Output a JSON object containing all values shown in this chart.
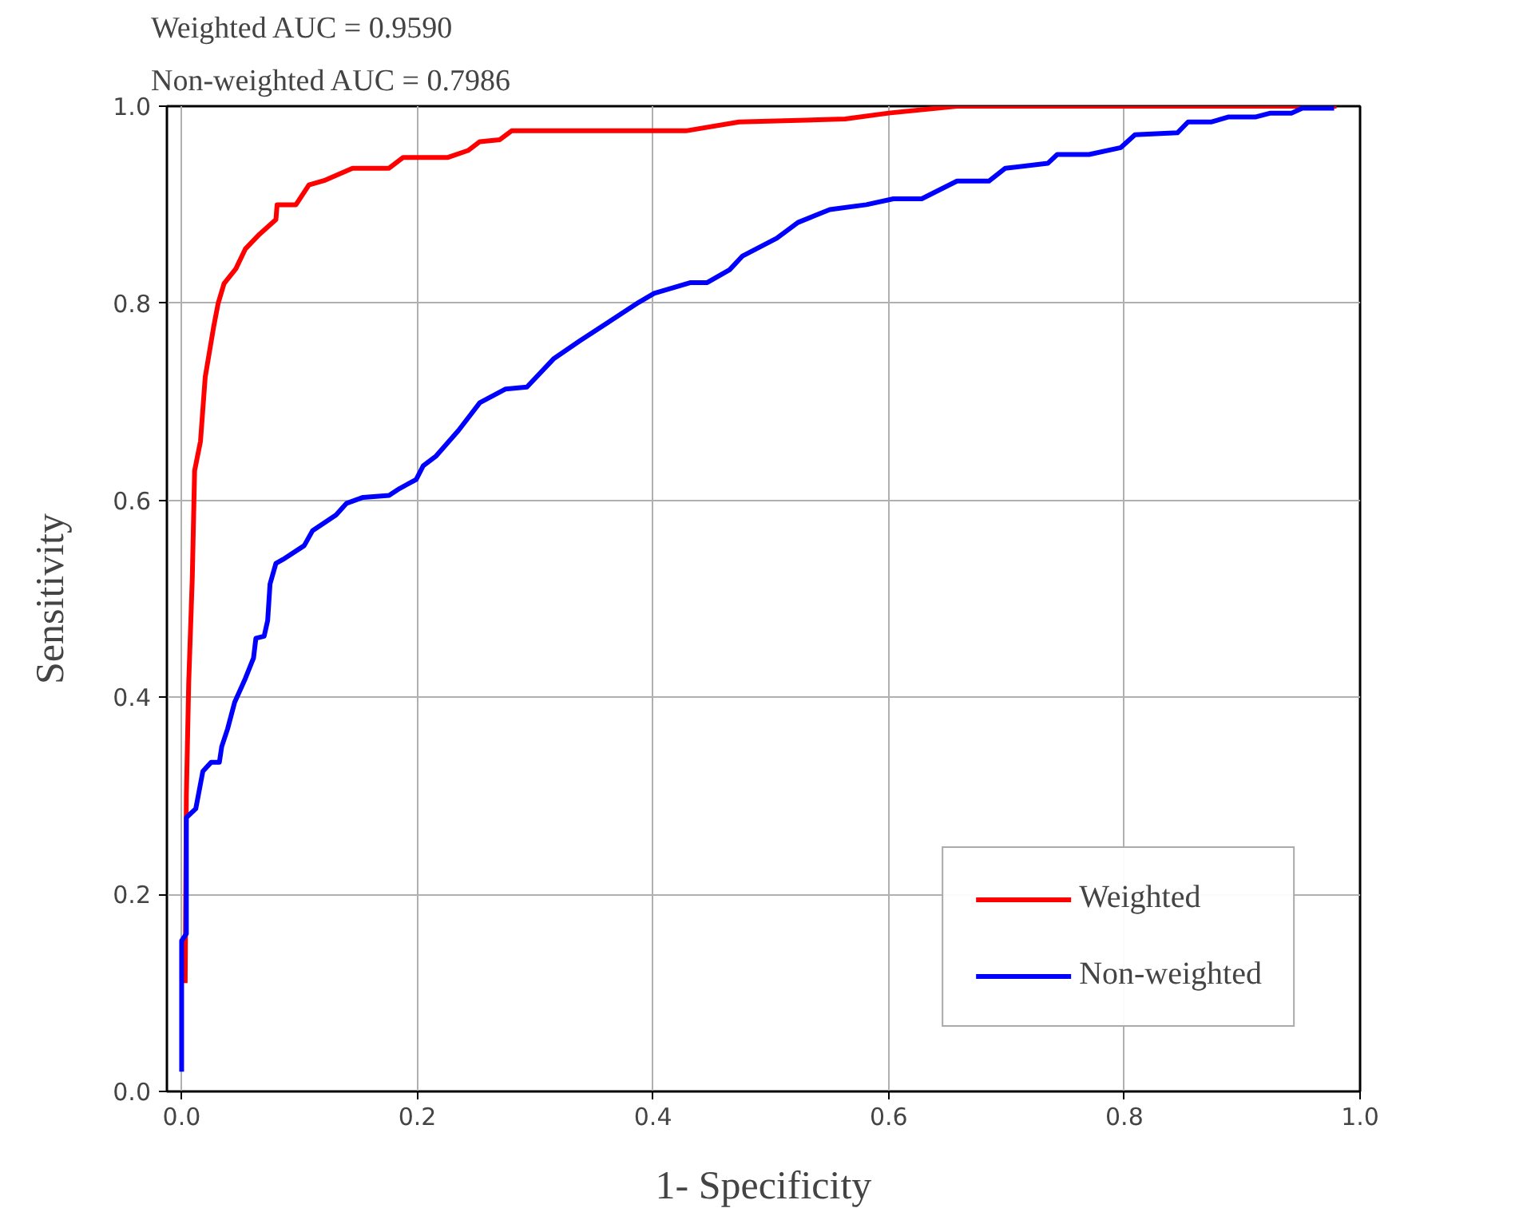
{
  "chart_data": {
    "type": "line",
    "title": "Weighted AUC = 0.9590",
    "subtitle": "Non-weighted AUC = 0.7986",
    "xlabel": "1- Specificity",
    "ylabel": "Sensitivity",
    "series": [
      {
        "name": "Weighted",
        "color": "#ff0000",
        "x": [
          0.003,
          0.004,
          0.006,
          0.009,
          0.011,
          0.016,
          0.02,
          0.027,
          0.031,
          0.036,
          0.046,
          0.054,
          0.066,
          0.08,
          0.081,
          0.097,
          0.108,
          0.122,
          0.145,
          0.176,
          0.188,
          0.226,
          0.243,
          0.253,
          0.27,
          0.28,
          0.343,
          0.428,
          0.473,
          0.563,
          0.6,
          0.658,
          0.98
        ],
        "values": [
          0.11,
          0.3,
          0.415,
          0.52,
          0.63,
          0.66,
          0.725,
          0.775,
          0.8,
          0.82,
          0.835,
          0.855,
          0.87,
          0.885,
          0.9,
          0.9,
          0.92,
          0.925,
          0.937,
          0.937,
          0.948,
          0.948,
          0.955,
          0.964,
          0.966,
          0.975,
          0.975,
          0.975,
          0.984,
          0.987,
          0.993,
          1.0,
          1.0
        ]
      },
      {
        "name": "Non-weighted",
        "color": "#0000ff",
        "x": [
          0.0,
          0.0,
          0.004,
          0.004,
          0.012,
          0.018,
          0.025,
          0.032,
          0.034,
          0.039,
          0.045,
          0.054,
          0.061,
          0.063,
          0.07,
          0.073,
          0.075,
          0.08,
          0.086,
          0.104,
          0.111,
          0.131,
          0.14,
          0.154,
          0.176,
          0.185,
          0.199,
          0.205,
          0.216,
          0.235,
          0.253,
          0.275,
          0.293,
          0.316,
          0.338,
          0.365,
          0.388,
          0.401,
          0.432,
          0.446,
          0.465,
          0.476,
          0.505,
          0.523,
          0.55,
          0.581,
          0.604,
          0.628,
          0.658,
          0.685,
          0.699,
          0.735,
          0.743,
          0.77,
          0.797,
          0.809,
          0.845,
          0.854,
          0.874,
          0.888,
          0.911,
          0.924,
          0.942,
          0.951,
          0.978
        ],
        "values": [
          0.02,
          0.153,
          0.16,
          0.278,
          0.287,
          0.325,
          0.334,
          0.334,
          0.35,
          0.368,
          0.395,
          0.419,
          0.44,
          0.46,
          0.462,
          0.478,
          0.515,
          0.536,
          0.54,
          0.554,
          0.569,
          0.585,
          0.597,
          0.603,
          0.605,
          0.612,
          0.621,
          0.635,
          0.645,
          0.671,
          0.699,
          0.713,
          0.715,
          0.744,
          0.762,
          0.783,
          0.801,
          0.81,
          0.821,
          0.821,
          0.834,
          0.848,
          0.866,
          0.882,
          0.895,
          0.9,
          0.906,
          0.906,
          0.924,
          0.924,
          0.937,
          0.942,
          0.951,
          0.951,
          0.958,
          0.971,
          0.973,
          0.984,
          0.984,
          0.989,
          0.989,
          0.993,
          0.993,
          0.998,
          0.998
        ]
      }
    ],
    "xlim": [
      -0.0125,
      1.0
    ],
    "ylim": [
      0.0,
      1.0
    ],
    "xticks": [
      {
        "value": 0,
        "label": "0.0"
      },
      {
        "value": 0.2,
        "label": "0.2"
      },
      {
        "value": 0.4,
        "label": "0.4"
      },
      {
        "value": 0.6,
        "label": "0.6"
      },
      {
        "value": 0.8,
        "label": "0.8"
      },
      {
        "value": 1,
        "label": "1.0"
      }
    ],
    "yticks": [
      {
        "value": 0,
        "label": "0.0"
      },
      {
        "value": 0.2,
        "label": "0.2"
      },
      {
        "value": 0.4,
        "label": "0.4"
      },
      {
        "value": 0.6,
        "label": "0.6"
      },
      {
        "value": 0.8,
        "label": "0.8"
      },
      {
        "value": 1,
        "label": "1.0"
      }
    ],
    "grid": true,
    "legend": "bottom right",
    "line_style": "solid"
  }
}
